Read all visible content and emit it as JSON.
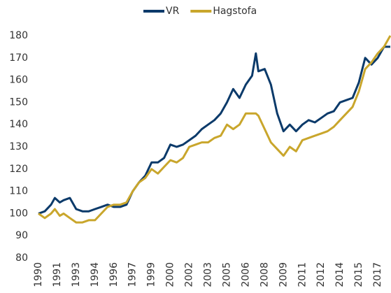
{
  "chart_data": {
    "type": "line",
    "x": [
      1990,
      1990.5,
      1991,
      1991.3,
      1991.7,
      1992,
      1992.5,
      1993,
      1993.5,
      1994,
      1994.5,
      1995,
      1995.5,
      1996,
      1996.5,
      1997,
      1997.5,
      1998,
      1998.5,
      1999,
      1999.5,
      2000,
      2000.5,
      2001,
      2001.5,
      2002,
      2002.5,
      2003,
      2003.5,
      2004,
      2004.5,
      2005,
      2005.5,
      2006,
      2006.5,
      2007,
      2007.3,
      2007.5,
      2008,
      2008.5,
      2009,
      2009.5,
      2010,
      2010.5,
      2011,
      2011.5,
      2012,
      2012.5,
      2013,
      2013.5,
      2014,
      2014.5,
      2015,
      2015.5,
      2016,
      2016.5,
      2017,
      2017.5,
      2018
    ],
    "series": [
      {
        "name": "VR",
        "color": "#0b3a6a",
        "values": [
          100,
          101,
          104,
          107,
          105,
          106,
          107,
          102,
          101,
          101,
          102,
          103,
          104,
          103,
          103,
          104,
          110,
          114,
          117,
          123,
          123,
          125,
          131,
          130,
          131,
          133,
          135,
          138,
          140,
          142,
          145,
          150,
          156,
          152,
          158,
          162,
          172,
          164,
          165,
          158,
          145,
          137,
          140,
          137,
          140,
          142,
          141,
          143,
          145,
          146,
          150,
          151,
          152,
          159,
          170,
          167,
          170,
          175,
          175
        ]
      },
      {
        "name": "Hagstofa",
        "color": "#c9a62c",
        "values": [
          100,
          98,
          100,
          102,
          99,
          100,
          98,
          96,
          96,
          97,
          97,
          100,
          103,
          104,
          104,
          105,
          110,
          114,
          116,
          120,
          118,
          121,
          124,
          123,
          125,
          130,
          131,
          132,
          132,
          134,
          135,
          140,
          138,
          140,
          145,
          145,
          145,
          144,
          138,
          132,
          129,
          126,
          130,
          128,
          133,
          134,
          135,
          136,
          137,
          139,
          142,
          145,
          148,
          155,
          165,
          168,
          172,
          175,
          180
        ]
      }
    ],
    "xlim": [
      1990,
      2018
    ],
    "xticks": [
      1990,
      {
        "value": 1991.5,
        "label": "1991"
      },
      1993,
      {
        "value": 1994.5,
        "label": "1994"
      },
      1996,
      {
        "value": 1997.5,
        "label": "1997"
      },
      1999,
      {
        "value": 2000.5,
        "label": "2000"
      },
      2002,
      {
        "value": 2003.5,
        "label": "2003"
      },
      2005,
      {
        "value": 2006.5,
        "label": "2006"
      },
      2008,
      {
        "value": 2009.5,
        "label": "2009"
      },
      2011,
      {
        "value": 2012.5,
        "label": "2012"
      },
      2014,
      {
        "value": 2015.5,
        "label": "2015"
      },
      2017
    ],
    "ylim": [
      80,
      180
    ],
    "yticks": [
      80,
      90,
      100,
      110,
      120,
      130,
      140,
      150,
      160,
      170,
      180
    ],
    "legend": "top"
  }
}
